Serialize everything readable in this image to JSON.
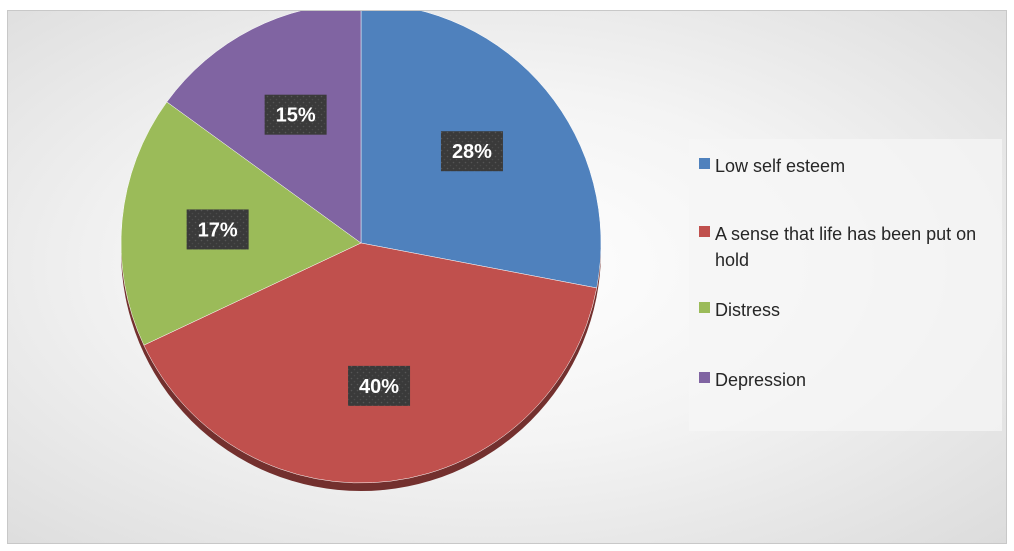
{
  "chart_data": {
    "type": "pie",
    "slices": [
      {
        "label": "Low self esteem",
        "value": 28,
        "display": "28%",
        "color": "#4f81bd"
      },
      {
        "label": "A sense that life has been put on hold",
        "value": 40,
        "display": "40%",
        "color": "#c0504d"
      },
      {
        "label": "Distress",
        "value": 17,
        "display": "17%",
        "color": "#9bbb59"
      },
      {
        "label": "Depression",
        "value": 15,
        "display": "15%",
        "color": "#8064a2"
      }
    ],
    "legend_position": "right",
    "start_angle": "12 o'clock",
    "direction": "clockwise"
  }
}
